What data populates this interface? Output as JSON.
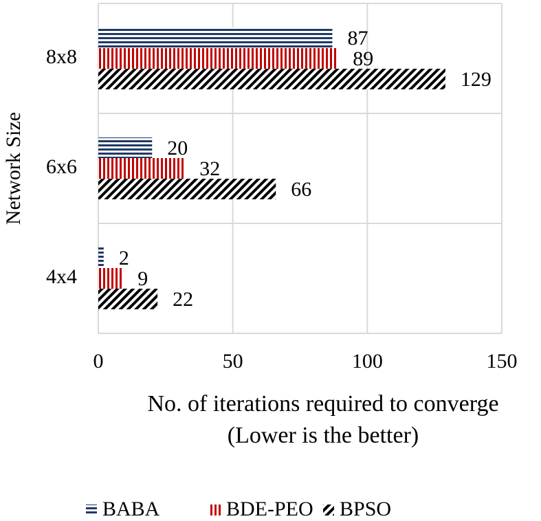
{
  "chart_data": {
    "type": "hbar",
    "x_label": "No. of iterations required to converge",
    "x_sublabel": "(Lower is the better)",
    "y_label": "Network Size",
    "categories": [
      "4x4",
      "6x6",
      "8x8"
    ],
    "series": [
      {
        "name": "BABA",
        "color": "#1f3864",
        "pattern": "horizontal",
        "values": [
          2,
          20,
          87
        ]
      },
      {
        "name": "BDE-PEO",
        "color": "#c00000",
        "pattern": "vertical",
        "values": [
          9,
          32,
          89
        ]
      },
      {
        "name": "BPSO",
        "color": "#000000",
        "pattern": "diagonal",
        "values": [
          22,
          66,
          129
        ]
      }
    ],
    "xlim": [
      0,
      150
    ],
    "xticks": [
      0,
      50,
      100,
      150
    ],
    "grid": true,
    "legend": "bottom"
  }
}
